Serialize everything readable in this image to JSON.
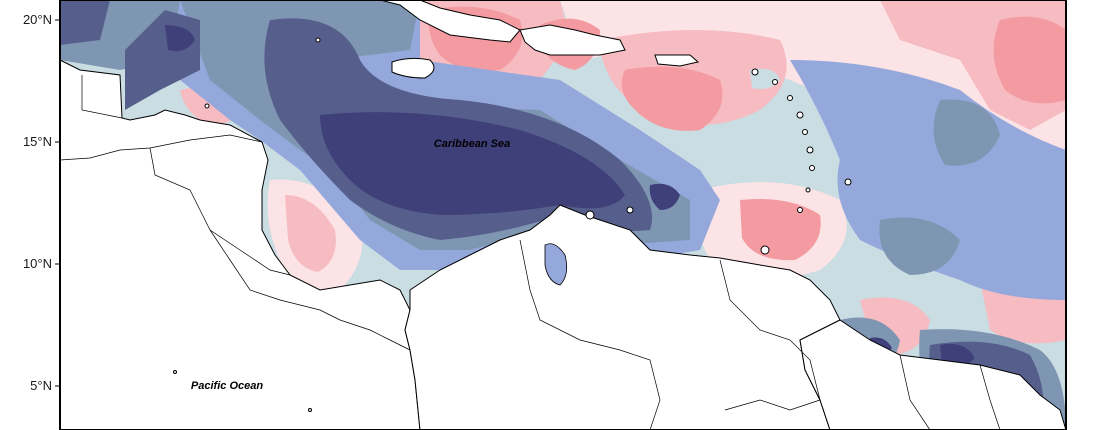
{
  "map": {
    "labels": {
      "caribbean_sea": "Caribbean Sea",
      "pacific_ocean": "Pacific Ocean"
    },
    "y_axis": {
      "ticks": [
        {
          "lat": 20,
          "label": "20°N"
        },
        {
          "lat": 15,
          "label": "15°N"
        },
        {
          "lat": 10,
          "label": "10°N"
        },
        {
          "lat": 5,
          "label": "5°N"
        }
      ]
    },
    "palette": {
      "deep_blue": "#3f3f7a",
      "navy": "#565f8c",
      "slate": "#7f96b3",
      "periwinkle": "#95a8dc",
      "light_blue": "#c9dde2",
      "blush": "#fbe3e6",
      "pink": "#f6bcc2",
      "salmon": "#f49aa1",
      "land": "#ffffff",
      "coastline": "#000000"
    }
  }
}
